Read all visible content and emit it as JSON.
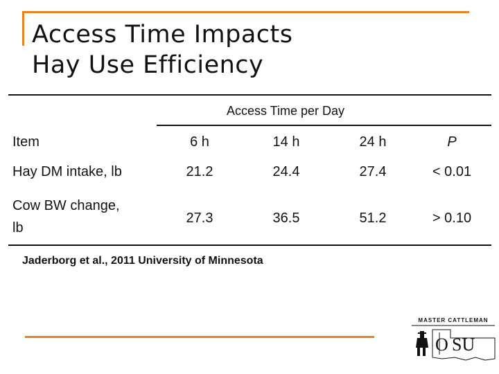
{
  "title": {
    "line1": "Access Time Impacts",
    "line2": "Hay Use Efficiency"
  },
  "table": {
    "group_header": "Access Time per Day",
    "columns": [
      "Item",
      "6 h",
      "14 h",
      "24 h",
      "P"
    ],
    "rows": [
      {
        "item": "Hay DM intake, lb",
        "values": [
          "21.2",
          "24.4",
          "27.4",
          "< 0.01"
        ]
      },
      {
        "item_line1": "Cow BW change,",
        "item_line2": "lb",
        "values": [
          "27.3",
          "36.5",
          "51.2",
          "> 0.10"
        ]
      }
    ]
  },
  "citation": "Jaderborg et al., 2011 University of Minnesota",
  "logo": {
    "top_text": "MASTER CATTLEMAN",
    "word": "OSU"
  },
  "colors": {
    "accent": "#e8821e",
    "text": "#111111"
  }
}
